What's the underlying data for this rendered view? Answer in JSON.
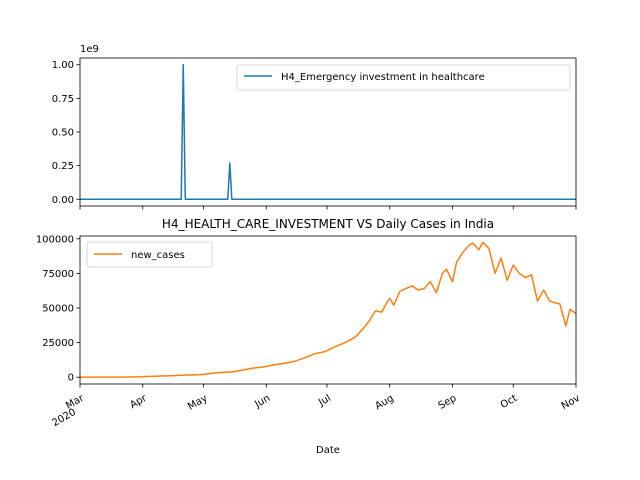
{
  "chart_data": [
    {
      "type": "line",
      "title": "",
      "xlabel": "",
      "ylabel": "",
      "y_offset_text": "1e9",
      "ylim": [
        -0.05,
        1.05
      ],
      "yticks": [
        "0.00",
        "0.25",
        "0.50",
        "0.75",
        "1.00"
      ],
      "yticks_values": [
        0,
        0.25,
        0.5,
        0.75,
        1.0
      ],
      "xlim": [
        "2020-03-01",
        "2020-11-01"
      ],
      "grid": false,
      "legend": "top-right",
      "series": [
        {
          "name": "H4_Emergency investment in healthcare",
          "color": "#1f77b4",
          "unit_scale": "1e9",
          "points": [
            [
              "2020-03-01",
              0
            ],
            [
              "2020-04-20",
              0
            ],
            [
              "2020-04-21",
              1.0
            ],
            [
              "2020-04-22",
              0
            ],
            [
              "2020-05-13",
              0
            ],
            [
              "2020-05-14",
              0.27
            ],
            [
              "2020-05-15",
              0
            ],
            [
              "2020-11-01",
              0
            ]
          ]
        }
      ]
    },
    {
      "type": "line",
      "title": "H4_HEALTH_CARE_INVESTMENT VS Daily Cases in India",
      "xlabel": "Date",
      "ylabel": "",
      "ylim": [
        -4900,
        102000
      ],
      "yticks": [
        "0",
        "25000",
        "50000",
        "75000",
        "100000"
      ],
      "yticks_values": [
        0,
        25000,
        50000,
        75000,
        100000
      ],
      "xlim": [
        "2020-03-01",
        "2020-11-01"
      ],
      "xticks": [
        {
          "label": "Mar",
          "sub": "2020",
          "date": "2020-03-01"
        },
        {
          "label": "Apr",
          "sub": "",
          "date": "2020-04-01"
        },
        {
          "label": "May",
          "sub": "",
          "date": "2020-05-01"
        },
        {
          "label": "Jun",
          "sub": "",
          "date": "2020-06-01"
        },
        {
          "label": "Jul",
          "sub": "",
          "date": "2020-07-01"
        },
        {
          "label": "Aug",
          "sub": "",
          "date": "2020-08-01"
        },
        {
          "label": "Sep",
          "sub": "",
          "date": "2020-09-01"
        },
        {
          "label": "Oct",
          "sub": "",
          "date": "2020-10-01"
        },
        {
          "label": "Nov",
          "sub": "",
          "date": "2020-11-01"
        }
      ],
      "grid": false,
      "legend": "top-left",
      "series": [
        {
          "name": "new_cases",
          "color": "#ff7f0e",
          "points": [
            [
              "2020-03-01",
              0
            ],
            [
              "2020-03-10",
              50
            ],
            [
              "2020-03-20",
              100
            ],
            [
              "2020-03-31",
              300
            ],
            [
              "2020-04-05",
              600
            ],
            [
              "2020-04-10",
              900
            ],
            [
              "2020-04-15",
              1100
            ],
            [
              "2020-04-20",
              1400
            ],
            [
              "2020-04-25",
              1700
            ],
            [
              "2020-04-30",
              1900
            ],
            [
              "2020-05-05",
              2800
            ],
            [
              "2020-05-10",
              3500
            ],
            [
              "2020-05-15",
              3800
            ],
            [
              "2020-05-20",
              5000
            ],
            [
              "2020-05-25",
              6500
            ],
            [
              "2020-05-31",
              7500
            ],
            [
              "2020-06-05",
              9000
            ],
            [
              "2020-06-10",
              10000
            ],
            [
              "2020-06-15",
              11500
            ],
            [
              "2020-06-20",
              14000
            ],
            [
              "2020-06-25",
              17000
            ],
            [
              "2020-06-30",
              18500
            ],
            [
              "2020-07-05",
              22000
            ],
            [
              "2020-07-10",
              25000
            ],
            [
              "2020-07-15",
              29000
            ],
            [
              "2020-07-20",
              37000
            ],
            [
              "2020-07-22",
              41000
            ],
            [
              "2020-07-25",
              48000
            ],
            [
              "2020-07-28",
              47000
            ],
            [
              "2020-07-31",
              55000
            ],
            [
              "2020-08-01",
              57000
            ],
            [
              "2020-08-03",
              52000
            ],
            [
              "2020-08-06",
              62000
            ],
            [
              "2020-08-09",
              64000
            ],
            [
              "2020-08-12",
              66000
            ],
            [
              "2020-08-15",
              63000
            ],
            [
              "2020-08-18",
              64000
            ],
            [
              "2020-08-21",
              69000
            ],
            [
              "2020-08-24",
              61000
            ],
            [
              "2020-08-27",
              75000
            ],
            [
              "2020-08-29",
              78000
            ],
            [
              "2020-09-01",
              69000
            ],
            [
              "2020-09-03",
              83000
            ],
            [
              "2020-09-06",
              90000
            ],
            [
              "2020-09-09",
              95000
            ],
            [
              "2020-09-11",
              97000
            ],
            [
              "2020-09-14",
              92000
            ],
            [
              "2020-09-16",
              97500
            ],
            [
              "2020-09-19",
              93000
            ],
            [
              "2020-09-22",
              75000
            ],
            [
              "2020-09-25",
              86000
            ],
            [
              "2020-09-28",
              70000
            ],
            [
              "2020-10-01",
              81000
            ],
            [
              "2020-10-04",
              75000
            ],
            [
              "2020-10-07",
              72000
            ],
            [
              "2020-10-10",
              74000
            ],
            [
              "2020-10-13",
              55000
            ],
            [
              "2020-10-16",
              63000
            ],
            [
              "2020-10-19",
              55000
            ],
            [
              "2020-10-21",
              54000
            ],
            [
              "2020-10-24",
              53000
            ],
            [
              "2020-10-27",
              37000
            ],
            [
              "2020-10-29",
              49000
            ],
            [
              "2020-11-01",
              46000
            ]
          ]
        }
      ]
    }
  ]
}
